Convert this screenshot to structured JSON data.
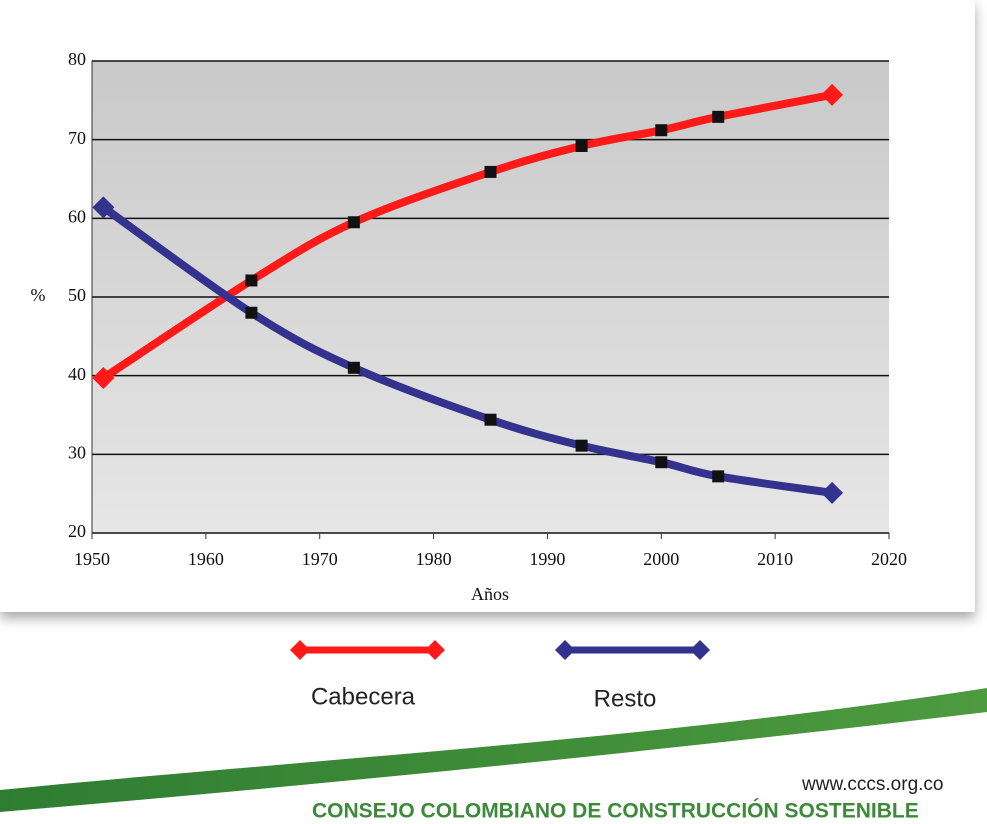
{
  "chart_data": {
    "type": "line",
    "ylabel": "%",
    "xlabel": "Años",
    "xlim": [
      1950,
      2020
    ],
    "xticks": [
      1950,
      1960,
      1970,
      1980,
      1990,
      2000,
      2010,
      2020
    ],
    "ylim": [
      20,
      80
    ],
    "yticks": [
      20,
      30,
      40,
      50,
      60,
      70,
      80
    ],
    "grid": true,
    "series": [
      {
        "name": "Cabecera",
        "color": "#ff1a1a",
        "x": [
          1951,
          1964,
          1973,
          1985,
          1993,
          2000,
          2005,
          2015
        ],
        "values": [
          39.7,
          52.1,
          59.5,
          65.9,
          69.2,
          71.2,
          72.9,
          75.7
        ]
      },
      {
        "name": "Resto",
        "color": "#33338f",
        "x": [
          1951,
          1964,
          1973,
          1985,
          1993,
          2000,
          2005,
          2015
        ],
        "values": [
          61.4,
          48,
          41,
          34.4,
          31.1,
          29,
          27.2,
          25.1
        ]
      }
    ]
  },
  "footer": {
    "url": "www.cccs.org.co",
    "org": "CONSEJO COLOMBIANO DE CONSTRUCCIÓN SOSTENIBLE"
  }
}
